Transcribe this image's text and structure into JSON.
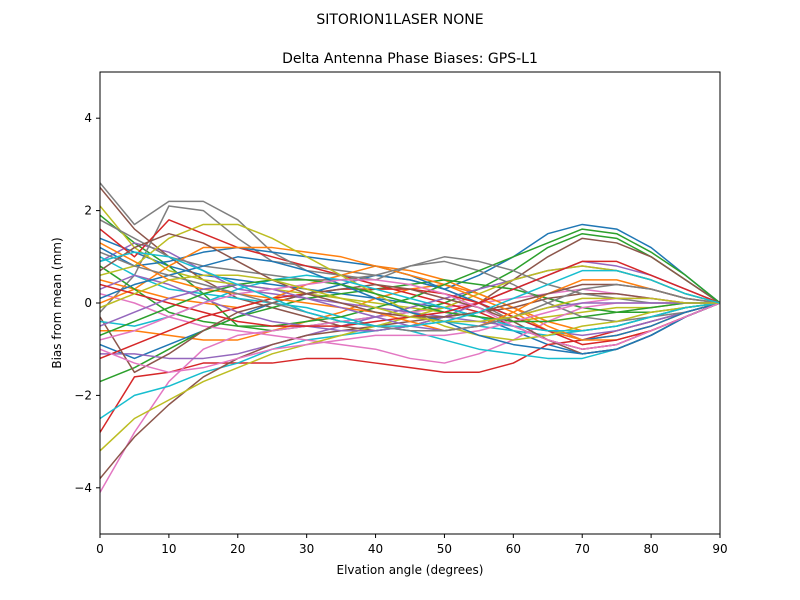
{
  "chart_data": {
    "type": "line",
    "suptitle": "SITORION1LASER  NONE",
    "title": "Delta Antenna Phase Biases: GPS-L1",
    "xlabel": "Elvation angle (degrees)",
    "ylabel": "Bias from mean (mm)",
    "xlim": [
      0,
      90
    ],
    "ylim": [
      -5,
      5
    ],
    "xticks": [
      0,
      10,
      20,
      30,
      40,
      50,
      60,
      70,
      80,
      90
    ],
    "yticks": [
      -4,
      -2,
      0,
      2,
      4
    ],
    "grid": false,
    "legend": "none",
    "x": [
      0,
      5,
      10,
      15,
      20,
      25,
      30,
      35,
      40,
      45,
      50,
      55,
      60,
      65,
      70,
      75,
      80,
      85,
      90
    ],
    "series": [
      {
        "color": "#1f77b4",
        "values": [
          1.4,
          1.1,
          0.8,
          0.6,
          0.5,
          0.4,
          0.3,
          0.2,
          0.1,
          0.0,
          -0.1,
          -0.3,
          -0.6,
          -0.9,
          -1.1,
          -1.0,
          -0.7,
          -0.3,
          0.0
        ]
      },
      {
        "color": "#ff7f0e",
        "values": [
          -0.6,
          -0.6,
          -0.7,
          -0.8,
          -0.8,
          -0.6,
          -0.4,
          -0.2,
          0.1,
          0.3,
          0.4,
          0.2,
          -0.1,
          -0.4,
          -0.6,
          -0.5,
          -0.3,
          -0.1,
          0.0
        ]
      },
      {
        "color": "#2ca02c",
        "values": [
          1.9,
          1.3,
          0.8,
          0.2,
          -0.5,
          -0.6,
          -0.5,
          -0.4,
          -0.3,
          -0.2,
          0.0,
          0.3,
          0.7,
          1.2,
          1.5,
          1.4,
          1.0,
          0.5,
          0.0
        ]
      },
      {
        "color": "#d62728",
        "values": [
          -2.8,
          -1.6,
          -1.5,
          -1.3,
          -1.3,
          -1.3,
          -1.2,
          -1.2,
          -1.3,
          -1.4,
          -1.5,
          -1.5,
          -1.3,
          -0.9,
          -0.8,
          -0.6,
          -0.4,
          -0.2,
          0.0
        ]
      },
      {
        "color": "#9467bd",
        "values": [
          0.9,
          1.3,
          1.1,
          0.7,
          0.3,
          0.2,
          0.1,
          0.0,
          -0.1,
          -0.2,
          -0.3,
          -0.4,
          -0.5,
          -0.6,
          -0.7,
          -0.6,
          -0.4,
          -0.2,
          0.0
        ]
      },
      {
        "color": "#8c564b",
        "values": [
          2.5,
          1.6,
          1.0,
          0.5,
          0.1,
          -0.1,
          -0.3,
          -0.5,
          -0.6,
          -0.5,
          -0.3,
          0.0,
          0.5,
          1.0,
          1.4,
          1.3,
          1.0,
          0.5,
          0.0
        ]
      },
      {
        "color": "#e377c2",
        "values": [
          -4.1,
          -2.8,
          -1.7,
          -1.0,
          -0.7,
          -0.6,
          -0.5,
          -0.4,
          -0.3,
          -0.2,
          -0.1,
          0.0,
          0.1,
          0.2,
          0.3,
          0.2,
          0.1,
          0.0,
          0.0
        ]
      },
      {
        "color": "#7f7f7f",
        "values": [
          -0.2,
          0.6,
          2.1,
          2.0,
          1.4,
          0.9,
          0.8,
          0.7,
          0.6,
          0.5,
          0.3,
          0.0,
          -0.4,
          -0.8,
          -1.0,
          -0.9,
          -0.6,
          -0.3,
          0.0
        ]
      },
      {
        "color": "#bcbd22",
        "values": [
          2.1,
          1.2,
          0.7,
          0.5,
          0.4,
          0.3,
          0.2,
          0.1,
          0.0,
          -0.1,
          -0.2,
          -0.3,
          -0.4,
          -0.3,
          -0.2,
          -0.1,
          -0.1,
          0.0,
          0.0
        ]
      },
      {
        "color": "#17becf",
        "values": [
          -2.5,
          -2.0,
          -1.8,
          -1.5,
          -1.3,
          -1.0,
          -0.8,
          -0.7,
          -0.6,
          -0.5,
          -0.4,
          -0.5,
          -0.6,
          -0.7,
          -0.6,
          -0.5,
          -0.3,
          -0.1,
          0.0
        ]
      },
      {
        "color": "#1f77b4",
        "values": [
          -0.9,
          -1.2,
          -0.9,
          -0.6,
          -0.3,
          0.0,
          0.2,
          0.4,
          0.6,
          0.5,
          0.3,
          0.6,
          1.0,
          1.5,
          1.7,
          1.6,
          1.2,
          0.6,
          0.0
        ]
      },
      {
        "color": "#ff7f0e",
        "values": [
          0.5,
          0.3,
          0.1,
          0.0,
          -0.1,
          0.1,
          0.4,
          0.6,
          0.8,
          0.7,
          0.5,
          0.2,
          -0.1,
          -0.5,
          -0.8,
          -0.7,
          -0.5,
          -0.2,
          0.0
        ]
      },
      {
        "color": "#2ca02c",
        "values": [
          -1.7,
          -1.4,
          -1.0,
          -0.6,
          -0.3,
          -0.1,
          0.1,
          0.2,
          0.3,
          0.4,
          0.5,
          0.4,
          0.3,
          0.1,
          -0.1,
          -0.2,
          -0.2,
          -0.1,
          0.0
        ]
      },
      {
        "color": "#d62728",
        "values": [
          1.6,
          1.0,
          1.8,
          1.5,
          1.2,
          1.0,
          0.8,
          0.6,
          0.4,
          0.2,
          0.0,
          -0.2,
          -0.5,
          -0.8,
          -1.0,
          -0.9,
          -0.6,
          -0.3,
          0.0
        ]
      },
      {
        "color": "#9467bd",
        "values": [
          -1.1,
          -1.1,
          -1.2,
          -1.2,
          -1.1,
          -0.9,
          -0.7,
          -0.5,
          -0.3,
          -0.1,
          0.1,
          0.3,
          0.5,
          0.7,
          0.8,
          0.7,
          0.5,
          0.2,
          0.0
        ]
      },
      {
        "color": "#8c564b",
        "values": [
          -3.8,
          -2.9,
          -2.2,
          -1.6,
          -1.2,
          -0.9,
          -0.7,
          -0.6,
          -0.5,
          -0.4,
          -0.3,
          -0.2,
          -0.1,
          0.1,
          0.2,
          0.2,
          0.1,
          0.0,
          0.0
        ]
      },
      {
        "color": "#e377c2",
        "values": [
          0.2,
          0.0,
          -0.3,
          -0.5,
          -0.6,
          -0.7,
          -0.8,
          -0.9,
          -1.0,
          -1.2,
          -1.3,
          -1.1,
          -0.8,
          -0.4,
          -0.1,
          0.0,
          0.0,
          0.0,
          0.0
        ]
      },
      {
        "color": "#7f7f7f",
        "values": [
          2.6,
          1.7,
          2.2,
          2.2,
          1.8,
          1.1,
          0.7,
          0.6,
          0.5,
          0.8,
          0.9,
          0.7,
          0.4,
          0.0,
          -0.3,
          -0.4,
          -0.3,
          -0.2,
          0.0
        ]
      },
      {
        "color": "#bcbd22",
        "values": [
          -3.2,
          -2.5,
          -2.1,
          -1.7,
          -1.4,
          -1.1,
          -0.9,
          -0.7,
          -0.5,
          -0.3,
          -0.1,
          0.2,
          0.5,
          0.7,
          0.8,
          0.7,
          0.5,
          0.2,
          0.0
        ]
      },
      {
        "color": "#17becf",
        "values": [
          1.0,
          0.6,
          0.3,
          0.2,
          0.1,
          0.0,
          -0.1,
          -0.3,
          -0.5,
          -0.6,
          -0.8,
          -1.0,
          -1.1,
          -1.2,
          -1.2,
          -1.0,
          -0.7,
          -0.3,
          0.0
        ]
      },
      {
        "color": "#1f77b4",
        "values": [
          1.2,
          0.8,
          0.9,
          1.1,
          1.2,
          1.1,
          1.0,
          0.9,
          0.8,
          0.6,
          0.3,
          0.0,
          -0.3,
          -0.6,
          -0.8,
          -0.7,
          -0.5,
          -0.2,
          0.0
        ]
      },
      {
        "color": "#ff7f0e",
        "values": [
          0.0,
          0.3,
          0.8,
          1.2,
          1.2,
          1.2,
          1.1,
          1.0,
          0.8,
          0.6,
          0.4,
          0.1,
          -0.2,
          -0.6,
          -0.8,
          -0.8,
          -0.6,
          -0.3,
          0.0
        ]
      },
      {
        "color": "#2ca02c",
        "values": [
          0.8,
          0.3,
          -0.2,
          -0.4,
          -0.5,
          -0.5,
          -0.4,
          -0.3,
          -0.1,
          0.1,
          0.4,
          0.7,
          1.0,
          1.3,
          1.6,
          1.5,
          1.1,
          0.6,
          0.0
        ]
      },
      {
        "color": "#d62728",
        "values": [
          -1.2,
          -0.9,
          -0.6,
          -0.3,
          -0.1,
          0.1,
          0.2,
          0.3,
          0.3,
          0.3,
          0.2,
          0.0,
          -0.3,
          -0.6,
          -0.9,
          -0.8,
          -0.6,
          -0.3,
          0.0
        ]
      },
      {
        "color": "#9467bd",
        "values": [
          0.3,
          0.6,
          0.4,
          0.1,
          -0.2,
          -0.4,
          -0.5,
          -0.6,
          -0.6,
          -0.5,
          -0.3,
          0.0,
          0.3,
          0.6,
          0.9,
          0.8,
          0.6,
          0.3,
          0.0
        ]
      },
      {
        "color": "#8c564b",
        "values": [
          -0.3,
          -1.5,
          -1.1,
          -0.6,
          -0.2,
          0.0,
          0.2,
          0.3,
          0.4,
          0.3,
          0.1,
          -0.1,
          -0.4,
          -0.8,
          -1.1,
          -1.0,
          -0.7,
          -0.3,
          0.0
        ]
      },
      {
        "color": "#e377c2",
        "values": [
          -1.0,
          -1.3,
          -1.5,
          -1.4,
          -1.2,
          -1.0,
          -0.9,
          -0.8,
          -0.7,
          -0.7,
          -0.7,
          -0.6,
          -0.4,
          -0.2,
          0.0,
          0.1,
          0.1,
          0.0,
          0.0
        ]
      },
      {
        "color": "#7f7f7f",
        "values": [
          1.8,
          1.4,
          1.0,
          0.8,
          0.7,
          0.6,
          0.5,
          0.5,
          0.6,
          0.8,
          1.0,
          0.9,
          0.7,
          0.4,
          0.2,
          0.1,
          0.0,
          0.0,
          0.0
        ]
      },
      {
        "color": "#bcbd22",
        "values": [
          0.6,
          0.8,
          1.4,
          1.7,
          1.7,
          1.4,
          1.0,
          0.6,
          0.2,
          -0.2,
          -0.5,
          -0.7,
          -0.8,
          -0.7,
          -0.5,
          -0.4,
          -0.2,
          -0.1,
          0.0
        ]
      },
      {
        "color": "#17becf",
        "values": [
          -0.4,
          -0.5,
          -0.3,
          0.0,
          0.3,
          0.5,
          0.6,
          0.5,
          0.3,
          0.1,
          -0.1,
          -0.3,
          -0.5,
          -0.6,
          -0.6,
          -0.5,
          -0.3,
          -0.1,
          0.0
        ]
      },
      {
        "color": "#1f77b4",
        "values": [
          0.1,
          0.4,
          0.6,
          0.8,
          1.0,
          0.9,
          0.7,
          0.4,
          0.1,
          -0.2,
          -0.4,
          -0.7,
          -0.9,
          -1.0,
          -1.1,
          -1.0,
          -0.7,
          -0.3,
          0.0
        ]
      },
      {
        "color": "#ff7f0e",
        "values": [
          1.3,
          0.9,
          0.5,
          0.3,
          0.2,
          0.1,
          0.0,
          -0.1,
          -0.2,
          -0.4,
          -0.6,
          -0.5,
          -0.2,
          0.2,
          0.5,
          0.5,
          0.3,
          0.1,
          0.0
        ]
      },
      {
        "color": "#2ca02c",
        "values": [
          -0.7,
          -0.4,
          -0.1,
          0.2,
          0.4,
          0.5,
          0.5,
          0.4,
          0.2,
          0.0,
          -0.2,
          -0.3,
          -0.4,
          -0.4,
          -0.3,
          -0.2,
          -0.1,
          0.0,
          0.0
        ]
      },
      {
        "color": "#d62728",
        "values": [
          0.4,
          0.2,
          0.0,
          -0.2,
          -0.4,
          -0.5,
          -0.5,
          -0.5,
          -0.4,
          -0.3,
          -0.2,
          0.0,
          0.3,
          0.6,
          0.9,
          0.9,
          0.6,
          0.3,
          0.0
        ]
      },
      {
        "color": "#9467bd",
        "values": [
          -0.5,
          -0.2,
          0.1,
          0.3,
          0.4,
          0.3,
          0.1,
          -0.1,
          -0.3,
          -0.5,
          -0.6,
          -0.5,
          -0.3,
          -0.1,
          0.0,
          0.0,
          0.0,
          0.0,
          0.0
        ]
      },
      {
        "color": "#8c564b",
        "values": [
          0.7,
          1.2,
          1.5,
          1.3,
          0.9,
          0.5,
          0.2,
          0.0,
          -0.2,
          -0.3,
          -0.3,
          -0.2,
          0.0,
          0.2,
          0.4,
          0.4,
          0.3,
          0.1,
          0.0
        ]
      },
      {
        "color": "#e377c2",
        "values": [
          -0.8,
          -0.6,
          -0.3,
          0.0,
          0.2,
          0.3,
          0.4,
          0.5,
          0.5,
          0.4,
          0.2,
          -0.1,
          -0.5,
          -0.8,
          -1.0,
          -0.9,
          -0.6,
          -0.3,
          0.0
        ]
      },
      {
        "color": "#7f7f7f",
        "values": [
          1.1,
          0.8,
          0.6,
          0.4,
          0.2,
          0.0,
          -0.2,
          -0.4,
          -0.5,
          -0.6,
          -0.6,
          -0.5,
          -0.3,
          0.0,
          0.3,
          0.4,
          0.3,
          0.1,
          0.0
        ]
      },
      {
        "color": "#bcbd22",
        "values": [
          -0.1,
          0.2,
          0.5,
          0.6,
          0.6,
          0.5,
          0.3,
          0.1,
          -0.1,
          -0.3,
          -0.4,
          -0.4,
          -0.3,
          -0.1,
          0.1,
          0.1,
          0.1,
          0.0,
          0.0
        ]
      },
      {
        "color": "#17becf",
        "values": [
          0.9,
          1.1,
          1.0,
          0.7,
          0.4,
          0.1,
          -0.2,
          -0.4,
          -0.5,
          -0.5,
          -0.4,
          -0.2,
          0.1,
          0.4,
          0.7,
          0.7,
          0.5,
          0.2,
          0.0
        ]
      }
    ]
  }
}
